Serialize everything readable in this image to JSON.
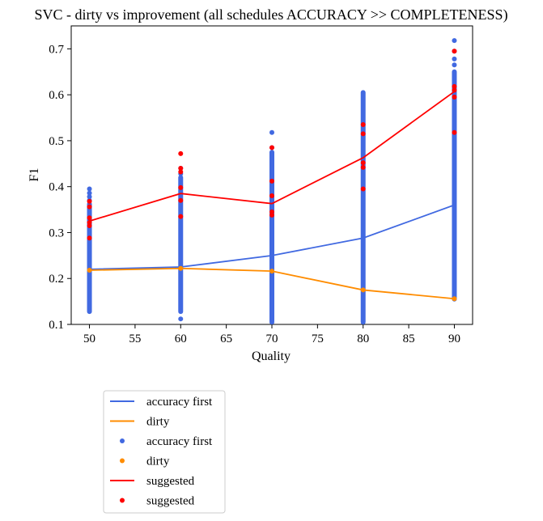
{
  "chart_data": {
    "type": "scatter",
    "title": "SVC - dirty vs improvement (all schedules ACCURACY >> COMPLETENESS)",
    "xlabel": "Quality",
    "ylabel": "F1",
    "xlim": [
      48,
      92
    ],
    "ylim": [
      0.1,
      0.75
    ],
    "xticks": [
      50,
      55,
      60,
      65,
      70,
      75,
      80,
      85,
      90
    ],
    "yticks": [
      0.1,
      0.2,
      0.3,
      0.4,
      0.5,
      0.6,
      0.7
    ],
    "grid": false,
    "legend_position": "below plot, left",
    "colors": {
      "accuracy_first": "#4169e1",
      "dirty": "#ff8c00",
      "suggested": "#ff0000"
    },
    "categories": [
      50,
      60,
      70,
      80,
      90
    ],
    "lines": [
      {
        "name": "accuracy first",
        "key": "accuracy_first",
        "y": [
          0.22,
          0.225,
          0.25,
          0.288,
          0.36
        ]
      },
      {
        "name": "dirty",
        "key": "dirty",
        "y": [
          0.218,
          0.222,
          0.216,
          0.175,
          0.156
        ]
      },
      {
        "name": "suggested",
        "key": "suggested",
        "y": [
          0.325,
          0.385,
          0.363,
          0.463,
          0.607
        ]
      }
    ],
    "scatter_ranges": [
      {
        "name": "accuracy first",
        "key": "accuracy_first",
        "ranges": [
          {
            "x": 50,
            "dense_min": 0.128,
            "dense_max": 0.362,
            "outliers": [
              0.37,
              0.378,
              0.386,
              0.395
            ]
          },
          {
            "x": 60,
            "dense_min": 0.128,
            "dense_max": 0.42,
            "outliers": [
              0.112,
              0.428,
              0.44
            ]
          },
          {
            "x": 70,
            "dense_min": 0.108,
            "dense_max": 0.475,
            "outliers": [
              0.105,
              0.485,
              0.518
            ]
          },
          {
            "x": 80,
            "dense_min": 0.105,
            "dense_max": 0.605,
            "outliers": []
          },
          {
            "x": 90,
            "dense_min": 0.155,
            "dense_max": 0.65,
            "outliers": [
              0.665,
              0.678,
              0.695,
              0.718
            ]
          }
        ]
      },
      {
        "name": "dirty",
        "key": "dirty",
        "points": [
          [
            50,
            0.218
          ],
          [
            60,
            0.222
          ],
          [
            70,
            0.216
          ],
          [
            80,
            0.175
          ],
          [
            90,
            0.156
          ]
        ]
      },
      {
        "name": "suggested",
        "key": "suggested",
        "points": [
          [
            50,
            0.288
          ],
          [
            50,
            0.315
          ],
          [
            50,
            0.322
          ],
          [
            50,
            0.332
          ],
          [
            50,
            0.356
          ],
          [
            50,
            0.368
          ],
          [
            60,
            0.335
          ],
          [
            60,
            0.37
          ],
          [
            60,
            0.398
          ],
          [
            60,
            0.432
          ],
          [
            60,
            0.44
          ],
          [
            60,
            0.472
          ],
          [
            70,
            0.338
          ],
          [
            70,
            0.345
          ],
          [
            70,
            0.38
          ],
          [
            70,
            0.412
          ],
          [
            70,
            0.485
          ],
          [
            80,
            0.395
          ],
          [
            80,
            0.442
          ],
          [
            80,
            0.452
          ],
          [
            80,
            0.515
          ],
          [
            80,
            0.535
          ],
          [
            90,
            0.518
          ],
          [
            90,
            0.595
          ],
          [
            90,
            0.61
          ],
          [
            90,
            0.618
          ],
          [
            90,
            0.695
          ]
        ]
      }
    ],
    "legend": [
      {
        "label": "accuracy first",
        "kind": "line",
        "key": "accuracy_first"
      },
      {
        "label": "dirty",
        "kind": "line",
        "key": "dirty"
      },
      {
        "label": "accuracy first",
        "kind": "dot",
        "key": "accuracy_first"
      },
      {
        "label": "dirty",
        "kind": "dot",
        "key": "dirty"
      },
      {
        "label": "suggested",
        "kind": "line",
        "key": "suggested"
      },
      {
        "label": "suggested",
        "kind": "dot",
        "key": "suggested"
      }
    ]
  }
}
